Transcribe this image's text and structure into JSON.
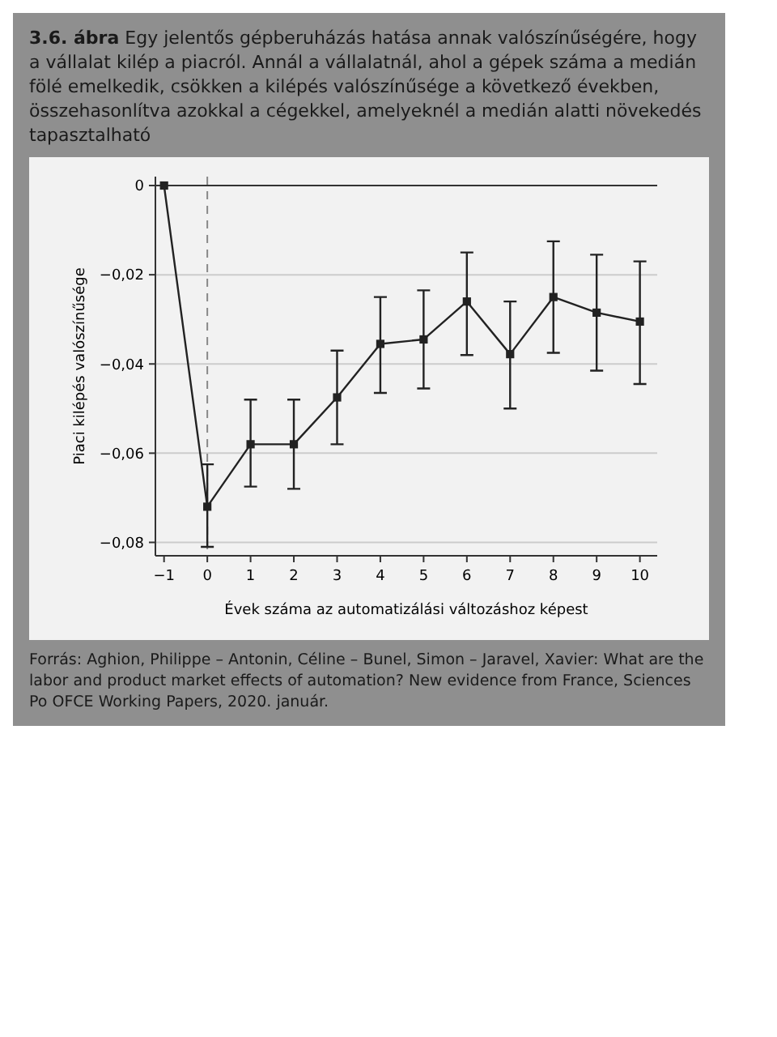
{
  "chart_data": {
    "type": "line",
    "title": "3.6. ábra",
    "subtitle": "Egy jelentős gépberuházás hatása annak valószínűségére, hogy a vállalat kilép a piacról. Annál a vállalatnál, ahol a gépek száma a medián fölé emelkedik, csökken a kilépés valószínűsége a következő években, összehasonlítva azokkal a cégekkel, amelyeknél a medián alatti növekedés tapasztalható",
    "xlabel": "Évek száma az automatizálási változáshoz képest",
    "ylabel": "Piaci kilépés valószínűsége",
    "x": [
      -1,
      0,
      1,
      2,
      3,
      4,
      5,
      6,
      7,
      8,
      9,
      10
    ],
    "series": [
      {
        "color": "#222222",
        "values": [
          0,
          -0.072,
          -0.058,
          -0.058,
          -0.0475,
          -0.0355,
          -0.0345,
          -0.026,
          -0.0378,
          -0.025,
          -0.0285,
          -0.0305
        ],
        "errors": [
          null,
          [
            -0.081,
            -0.0625
          ],
          [
            -0.0675,
            -0.048
          ],
          [
            -0.068,
            -0.048
          ],
          [
            -0.058,
            -0.037
          ],
          [
            -0.0465,
            -0.025
          ],
          [
            -0.0455,
            -0.0235
          ],
          [
            -0.038,
            -0.015
          ],
          [
            -0.05,
            -0.026
          ],
          [
            -0.0375,
            -0.0125
          ],
          [
            -0.0415,
            -0.0155
          ],
          [
            -0.0445,
            -0.017
          ]
        ]
      }
    ],
    "xlim": [
      -1.2,
      10.4
    ],
    "ylim": [
      -0.083,
      0.002
    ],
    "xticks": [
      {
        "value": -1,
        "label": "−1"
      },
      0,
      1,
      2,
      3,
      4,
      5,
      6,
      7,
      8,
      9,
      10
    ],
    "yticks": [
      0,
      {
        "value": -0.02,
        "label": "−0,02"
      },
      {
        "value": -0.04,
        "label": "−0,04"
      },
      {
        "value": -0.06,
        "label": "−0,06"
      },
      {
        "value": -0.08,
        "label": "−0,08"
      }
    ],
    "ref_lines": [
      {
        "axis": "y",
        "value": 0,
        "color": "#333333",
        "line_style": "solid"
      },
      {
        "axis": "x",
        "value": 0,
        "color": "#888888",
        "line_style": "dashed"
      }
    ],
    "grid": "y",
    "marker": "square",
    "line_style": "solid",
    "annotations": [
      "Forrás: Aghion, Philippe – Antonin, Céline – Bunel, Simon – Jaravel, Xavier: What are the labor and product market effects of automation? New evidence from France, Sciences Po OFCE Working Papers, 2020. január."
    ]
  }
}
